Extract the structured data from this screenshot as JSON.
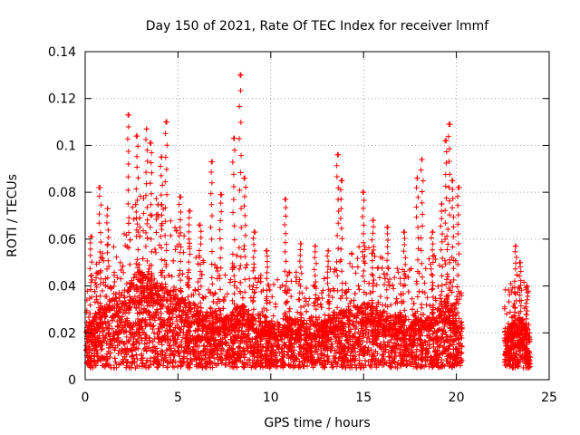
{
  "chart_data": {
    "type": "scatter",
    "title": "Day 150 of 2021, Rate Of TEC Index for receiver lmmf",
    "xlabel": "GPS time / hours",
    "ylabel": "ROTI / TECUs",
    "xlim": [
      0,
      25
    ],
    "ylim": [
      0,
      0.14
    ],
    "xticks": [
      0,
      5,
      10,
      15,
      20,
      25
    ],
    "yticks": [
      0,
      0.02,
      0.04,
      0.06,
      0.08,
      0.1,
      0.12,
      0.14
    ],
    "xtick_labels": [
      "0",
      "5",
      "10",
      "15",
      "20",
      "25"
    ],
    "ytick_labels": [
      "0",
      "0.02",
      "0.04",
      "0.06",
      "0.08",
      "0.1",
      "0.12",
      "0.14"
    ],
    "grid": true,
    "marker": "+",
    "color": "#ff0000",
    "data_segments_hours": [
      [
        0.0,
        20.3
      ],
      [
        22.6,
        24.0
      ]
    ],
    "envelope": {
      "hours": [
        0.0,
        0.5,
        1.0,
        1.5,
        2.0,
        2.5,
        3.0,
        3.5,
        4.0,
        4.5,
        5.0,
        5.5,
        6.0,
        6.5,
        7.0,
        7.5,
        8.0,
        8.5,
        9.0,
        9.5,
        10.0,
        10.5,
        11.0,
        11.5,
        12.0,
        12.5,
        13.0,
        13.5,
        14.0,
        14.5,
        15.0,
        15.5,
        16.0,
        16.5,
        17.0,
        17.5,
        18.0,
        18.5,
        19.0,
        19.5,
        20.0,
        20.3,
        22.6,
        23.0,
        23.5,
        24.0
      ],
      "typical_roti": [
        0.017,
        0.02,
        0.024,
        0.026,
        0.028,
        0.032,
        0.035,
        0.034,
        0.032,
        0.03,
        0.027,
        0.025,
        0.024,
        0.022,
        0.021,
        0.02,
        0.022,
        0.024,
        0.021,
        0.019,
        0.018,
        0.019,
        0.02,
        0.019,
        0.018,
        0.018,
        0.019,
        0.021,
        0.022,
        0.023,
        0.025,
        0.024,
        0.022,
        0.021,
        0.02,
        0.02,
        0.021,
        0.022,
        0.024,
        0.026,
        0.022,
        0.018,
        0.016,
        0.018,
        0.02,
        0.015
      ],
      "min_roti": 0.005
    },
    "peaks": [
      {
        "x": 0.3,
        "y": 0.061
      },
      {
        "x": 0.8,
        "y": 0.082
      },
      {
        "x": 1.2,
        "y": 0.073
      },
      {
        "x": 2.35,
        "y": 0.113
      },
      {
        "x": 2.8,
        "y": 0.104
      },
      {
        "x": 3.3,
        "y": 0.107
      },
      {
        "x": 3.55,
        "y": 0.101
      },
      {
        "x": 4.1,
        "y": 0.095
      },
      {
        "x": 4.35,
        "y": 0.11
      },
      {
        "x": 5.1,
        "y": 0.078
      },
      {
        "x": 5.6,
        "y": 0.072
      },
      {
        "x": 6.2,
        "y": 0.066
      },
      {
        "x": 6.8,
        "y": 0.093
      },
      {
        "x": 7.3,
        "y": 0.079
      },
      {
        "x": 8.0,
        "y": 0.103
      },
      {
        "x": 8.35,
        "y": 0.13
      },
      {
        "x": 8.6,
        "y": 0.086
      },
      {
        "x": 9.1,
        "y": 0.063
      },
      {
        "x": 9.8,
        "y": 0.055
      },
      {
        "x": 10.8,
        "y": 0.077
      },
      {
        "x": 11.6,
        "y": 0.058
      },
      {
        "x": 12.4,
        "y": 0.057
      },
      {
        "x": 13.1,
        "y": 0.055
      },
      {
        "x": 13.6,
        "y": 0.096
      },
      {
        "x": 13.8,
        "y": 0.085
      },
      {
        "x": 15.0,
        "y": 0.08
      },
      {
        "x": 15.5,
        "y": 0.068
      },
      {
        "x": 16.3,
        "y": 0.065
      },
      {
        "x": 17.2,
        "y": 0.063
      },
      {
        "x": 17.9,
        "y": 0.086
      },
      {
        "x": 18.15,
        "y": 0.094
      },
      {
        "x": 18.7,
        "y": 0.063
      },
      {
        "x": 19.2,
        "y": 0.075
      },
      {
        "x": 19.45,
        "y": 0.102
      },
      {
        "x": 19.6,
        "y": 0.109
      },
      {
        "x": 19.8,
        "y": 0.085
      },
      {
        "x": 20.1,
        "y": 0.082
      },
      {
        "x": 23.2,
        "y": 0.057
      },
      {
        "x": 23.45,
        "y": 0.05
      },
      {
        "x": 23.8,
        "y": 0.04
      }
    ]
  }
}
